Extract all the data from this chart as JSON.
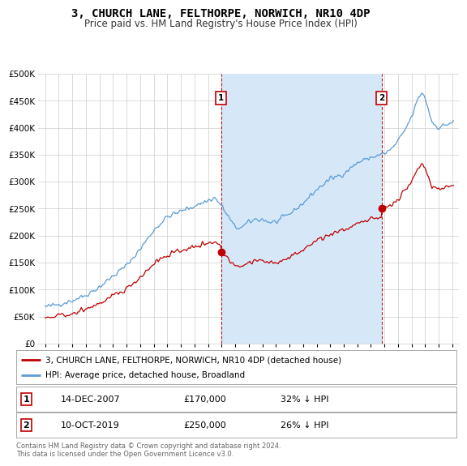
{
  "title": "3, CHURCH LANE, FELTHORPE, NORWICH, NR10 4DP",
  "subtitle": "Price paid vs. HM Land Registry's House Price Index (HPI)",
  "legend_line1": "3, CHURCH LANE, FELTHORPE, NORWICH, NR10 4DP (detached house)",
  "legend_line2": "HPI: Average price, detached house, Broadland",
  "footer": "Contains HM Land Registry data © Crown copyright and database right 2024.\nThis data is licensed under the Open Government Licence v3.0.",
  "annotation1": {
    "num": "1",
    "date": "14-DEC-2007",
    "price": "£170,000",
    "pct": "32% ↓ HPI"
  },
  "annotation2": {
    "num": "2",
    "date": "10-OCT-2019",
    "price": "£250,000",
    "pct": "26% ↓ HPI"
  },
  "hpi_color": "#5b9bd5",
  "hpi_fill_color": "#d6e8f7",
  "price_color": "#c00000",
  "vline_color": "#c00000",
  "background_color": "#ffffff",
  "grid_color": "#cccccc",
  "ylim": [
    0,
    500000
  ],
  "yticks": [
    0,
    50000,
    100000,
    150000,
    200000,
    250000,
    300000,
    350000,
    400000,
    450000,
    500000
  ],
  "xlim": [
    1994.5,
    2025.5
  ],
  "xticks": [
    1995,
    1996,
    1997,
    1998,
    1999,
    2000,
    2001,
    2002,
    2003,
    2004,
    2005,
    2006,
    2007,
    2008,
    2009,
    2010,
    2011,
    2012,
    2013,
    2014,
    2015,
    2016,
    2017,
    2018,
    2019,
    2020,
    2021,
    2022,
    2023,
    2024,
    2025
  ],
  "vline1_x": 2007.96,
  "vline2_x": 2019.79,
  "sale1_y": 170000,
  "sale2_y": 250000
}
